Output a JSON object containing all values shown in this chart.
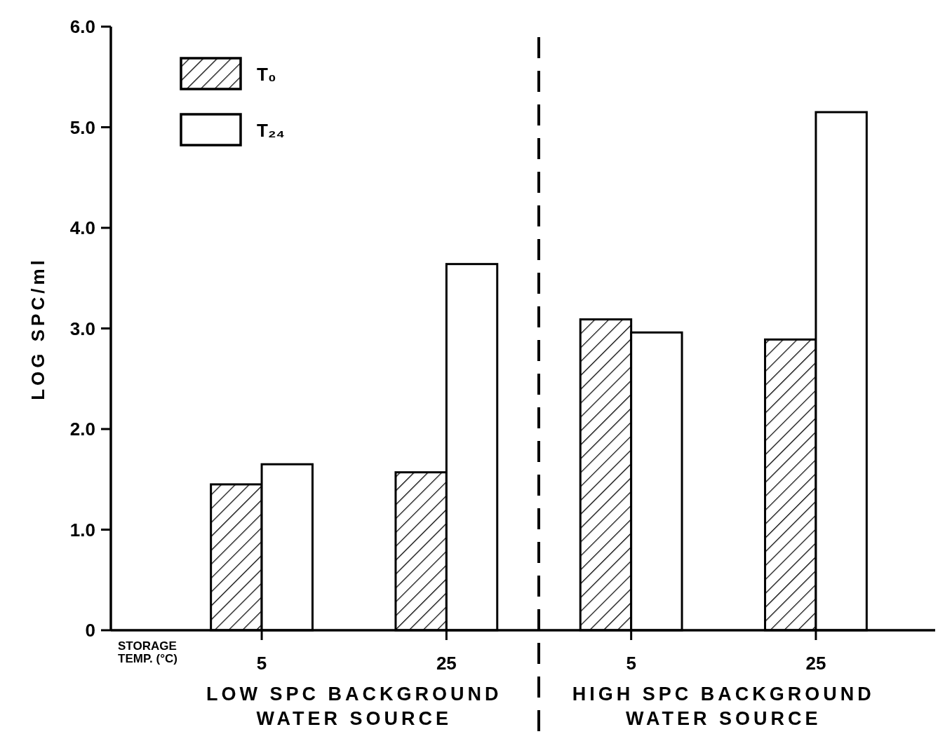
{
  "chart_data": {
    "type": "bar",
    "ylabel": "LOG SPC/ml",
    "xlabel": "STORAGE TEMP. (°C)",
    "categories": [
      "5",
      "25",
      "5",
      "25"
    ],
    "series": [
      {
        "name": "T₀",
        "color": "#000000",
        "values": [
          1.45,
          1.57,
          3.09,
          2.89
        ]
      },
      {
        "name": "T₂₄",
        "color": "#ffffff",
        "values": [
          1.65,
          3.64,
          2.96,
          5.15
        ]
      }
    ],
    "ylim": [
      0,
      6
    ],
    "yticks": [
      0,
      {
        "value": 1,
        "label": "1.0"
      },
      {
        "value": 2,
        "label": "2.0"
      },
      {
        "value": 3,
        "label": "3.0"
      },
      {
        "value": 4,
        "label": "4.0"
      },
      {
        "value": 5,
        "label": "5.0"
      },
      {
        "value": 6,
        "label": "6.0"
      }
    ],
    "annotations": [
      "LOW SPC BACKGROUND WATER SOURCE",
      "HIGH SPC BACKGROUND WATER SOURCE"
    ],
    "legend": "top left",
    "grid": false
  }
}
